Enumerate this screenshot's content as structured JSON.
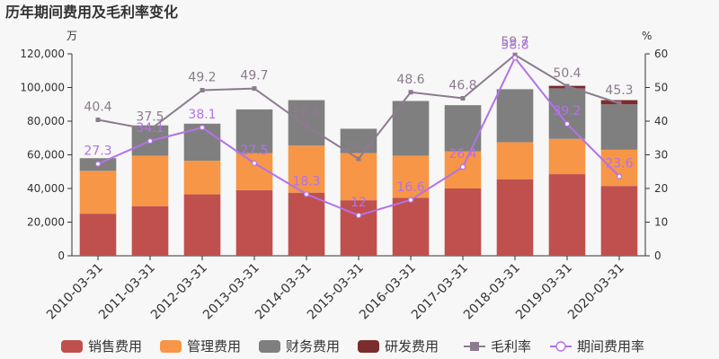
{
  "title": "历年期间费用及毛利率变化",
  "chart_data": {
    "type": "bar",
    "title": "历年期间费用及毛利率变化",
    "left_unit": "万",
    "right_unit": "%",
    "categories": [
      "2010-03-31",
      "2011-03-31",
      "2012-03-31",
      "2013-03-31",
      "2014-03-31",
      "2015-03-31",
      "2016-03-31",
      "2017-03-31",
      "2018-03-31",
      "2019-03-31",
      "2020-03-31"
    ],
    "left_axis": {
      "min": 0,
      "max": 120000,
      "ticks": [
        "0",
        "20,000",
        "40,000",
        "60,000",
        "80,000",
        "100,000",
        "120,000"
      ]
    },
    "right_axis": {
      "min": 0,
      "max": 60,
      "ticks": [
        "0",
        "10",
        "20",
        "30",
        "40",
        "50",
        "60"
      ]
    },
    "grid": false,
    "legend_position": "bottom",
    "bar_series": [
      {
        "name": "销售费用",
        "color": "#c0504d",
        "values": [
          25000,
          29500,
          36500,
          39000,
          37500,
          33000,
          34500,
          40000,
          45500,
          48500,
          41500
        ]
      },
      {
        "name": "管理费用",
        "color": "#f79646",
        "values": [
          25500,
          30000,
          20000,
          22000,
          28000,
          28000,
          25000,
          22000,
          22000,
          21000,
          21500
        ]
      },
      {
        "name": "财务费用",
        "color": "#7f7f7f",
        "values": [
          7500,
          18000,
          22000,
          26000,
          27000,
          14500,
          32500,
          27500,
          31500,
          30000,
          27000
        ]
      },
      {
        "name": "研发费用",
        "color": "#7b2c2c",
        "values": [
          0,
          0,
          0,
          0,
          0,
          0,
          0,
          0,
          0,
          1500,
          2500
        ]
      }
    ],
    "line_series": [
      {
        "name": "毛利率",
        "color": "#8c7b8e",
        "marker": "square",
        "values": [
          40.4,
          37.5,
          49.2,
          49.7,
          38.6,
          28.8,
          48.6,
          46.8,
          59.7,
          50.4,
          45.3
        ]
      },
      {
        "name": "期间费用率",
        "color": "#b272e8",
        "marker": "circle",
        "values": [
          27.3,
          34.1,
          38.1,
          27.5,
          18.3,
          12,
          16.6,
          26.4,
          58.8,
          39.2,
          23.6
        ]
      }
    ],
    "line_labels": [
      {
        "series": 0,
        "values": [
          "40.4",
          "37.5",
          "49.2",
          "49.7",
          "38.6",
          "28.8",
          "48.6",
          "46.8",
          "59.7",
          "50.4",
          "45.3"
        ]
      },
      {
        "series": 1,
        "values": [
          "27.3",
          "34.1",
          "38.1",
          "27.5",
          "18.3",
          "12",
          "16.6",
          "26.4",
          "58.8",
          "39.2",
          "23.6"
        ]
      }
    ]
  }
}
